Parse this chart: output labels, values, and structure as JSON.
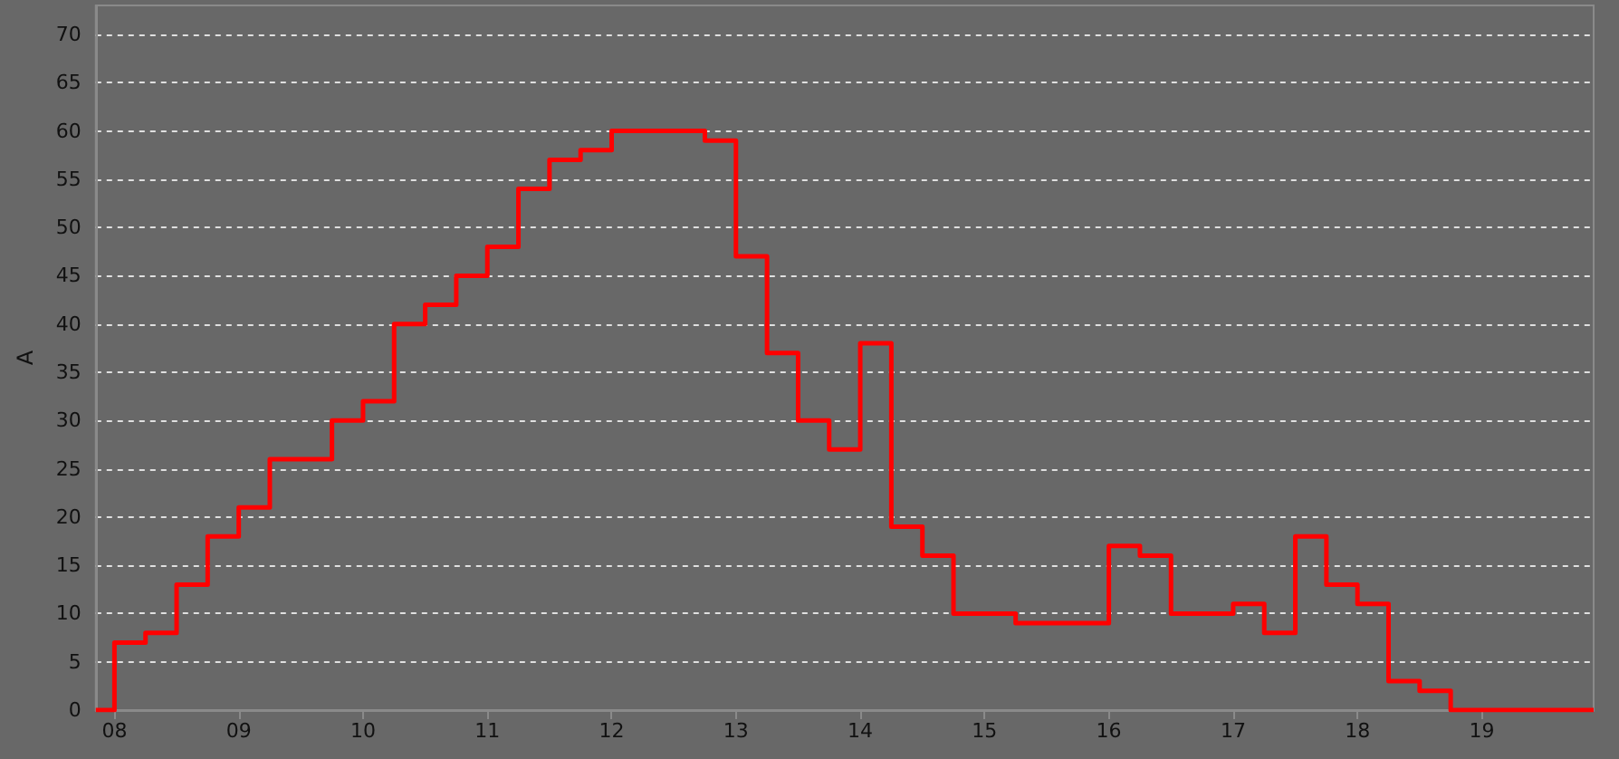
{
  "chart_data": {
    "type": "step",
    "ylabel": "A",
    "color": "#ff0000",
    "x": [
      7.85,
      8,
      8.25,
      8.5,
      8.75,
      9,
      9.25,
      9.5,
      9.75,
      10,
      10.25,
      10.5,
      10.75,
      11,
      11.25,
      11.5,
      11.75,
      12,
      12.25,
      12.5,
      12.75,
      13,
      13.25,
      13.5,
      13.75,
      14,
      14.25,
      14.5,
      14.75,
      15,
      15.25,
      15.5,
      15.75,
      16,
      16.25,
      16.5,
      16.75,
      17,
      17.25,
      17.5,
      17.75,
      18,
      18.25,
      18.5,
      18.75,
      19,
      19.25,
      19.5,
      19.75,
      19.9
    ],
    "values": [
      0,
      7,
      8,
      13,
      18,
      21,
      26,
      26,
      30,
      32,
      40,
      42,
      45,
      48,
      54,
      57,
      58,
      60,
      60,
      60,
      59,
      47,
      37,
      30,
      27,
      38,
      19,
      16,
      10,
      10,
      9,
      9,
      9,
      17,
      16,
      10,
      10,
      11,
      8,
      18,
      13,
      11,
      3,
      2,
      0,
      0,
      0,
      0,
      0,
      0
    ],
    "xlim": [
      7.85,
      19.9
    ],
    "xticks": [
      {
        "value": 8,
        "label": "08"
      },
      {
        "value": 9,
        "label": "09"
      },
      10,
      11,
      12,
      13,
      14,
      15,
      16,
      17,
      18,
      19
    ],
    "ylim": [
      0,
      73
    ],
    "yticks": [
      0,
      5,
      10,
      15,
      20,
      25,
      30,
      35,
      40,
      45,
      50,
      55,
      60,
      65,
      70
    ],
    "grid": "y",
    "line_style": "solid",
    "marker": "none"
  }
}
